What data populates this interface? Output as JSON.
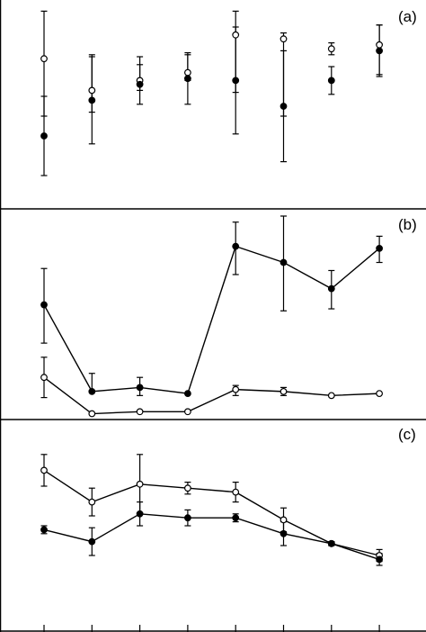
{
  "chart_data": [
    {
      "type": "scatter",
      "panel_label": "(a)",
      "x": [
        1,
        2,
        3,
        4,
        5,
        6,
        7,
        8
      ],
      "ylim": [
        0,
        100
      ],
      "connect_points": false,
      "series": [
        {
          "marker": "open-circle",
          "values": [
            74,
            58,
            63,
            67,
            86,
            84,
            79,
            81
          ],
          "err_low": [
            29,
            11,
            5,
            4,
            29,
            39,
            3,
            15
          ],
          "err_high": [
            24,
            18,
            12,
            9,
            12,
            3,
            3,
            10
          ]
        },
        {
          "marker": "filled-circle",
          "values": [
            35,
            53,
            61,
            64,
            63,
            50,
            63,
            78
          ],
          "err_low": [
            20,
            22,
            10,
            13,
            27,
            28,
            7,
            13
          ],
          "err_high": [
            20,
            22,
            10,
            13,
            27,
            28,
            7,
            13
          ]
        }
      ]
    },
    {
      "type": "line",
      "panel_label": "(b)",
      "x": [
        1,
        2,
        3,
        4,
        5,
        6,
        7,
        8
      ],
      "ylim": [
        0,
        100
      ],
      "series": [
        {
          "marker": "filled-circle",
          "values": [
            56,
            13,
            15,
            12,
            85,
            77,
            64,
            84
          ],
          "err_low": [
            19,
            0,
            4,
            0,
            14,
            24,
            10,
            7
          ],
          "err_high": [
            18,
            9,
            5,
            0,
            12,
            23,
            9,
            6
          ]
        },
        {
          "marker": "open-circle",
          "values": [
            20,
            2,
            3,
            3,
            14,
            13,
            11,
            12
          ],
          "err_low": [
            10,
            0,
            0,
            0,
            3,
            2,
            0,
            0
          ],
          "err_high": [
            10,
            0,
            0,
            0,
            2,
            2,
            0,
            0
          ]
        }
      ]
    },
    {
      "type": "line",
      "panel_label": "(c)",
      "x": [
        1,
        2,
        3,
        4,
        5,
        6,
        7,
        8
      ],
      "ylim": [
        0,
        100
      ],
      "series": [
        {
          "marker": "open-circle",
          "values": [
            78,
            62,
            71,
            69,
            67,
            53,
            41,
            35
          ],
          "err_low": [
            8,
            7,
            15,
            3,
            5,
            6,
            1,
            3
          ],
          "err_high": [
            8,
            7,
            15,
            3,
            5,
            6,
            1,
            3
          ]
        },
        {
          "marker": "filled-circle",
          "values": [
            48,
            42,
            56,
            54,
            54,
            46,
            41,
            33
          ],
          "err_low": [
            2,
            7,
            6,
            4,
            2,
            6,
            1,
            3
          ],
          "err_high": [
            2,
            7,
            6,
            4,
            2,
            6,
            1,
            3
          ]
        }
      ]
    }
  ]
}
